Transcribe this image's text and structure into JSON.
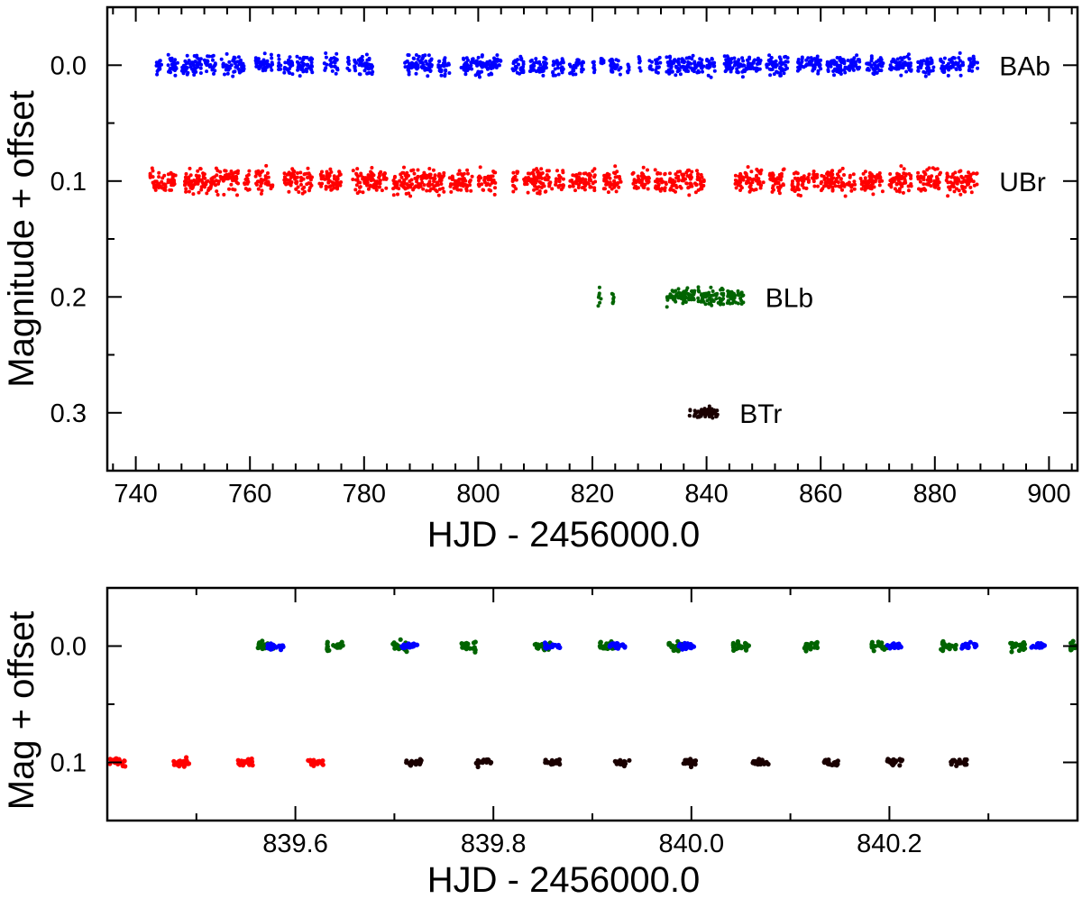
{
  "chart_data": [
    {
      "type": "scatter",
      "xlabel": "HJD - 2456000.0",
      "ylabel": "Magnitude + offset",
      "xlim": [
        735,
        905
      ],
      "ylim": [
        0.35,
        -0.05
      ],
      "x_ticks": [
        740,
        760,
        780,
        800,
        820,
        840,
        860,
        880,
        900
      ],
      "y_ticks": [
        0.0,
        0.1,
        0.2,
        0.3
      ],
      "y_tick_labels": [
        "0.0",
        "0.1",
        "0.2",
        "0.3"
      ],
      "grid": false,
      "legend": "none",
      "series": [
        {
          "name": "BAb",
          "color": "#0000ff",
          "offset": 0.0,
          "scatter": 0.012,
          "segments": [
            [
              743.5,
              744.5
            ],
            [
              745.5,
              747.5
            ],
            [
              748,
              751.5
            ],
            [
              752,
              754
            ],
            [
              755,
              759
            ],
            [
              761,
              764
            ],
            [
              765,
              765.5
            ],
            [
              766,
              767.5
            ],
            [
              768,
              771
            ],
            [
              773,
              773.5
            ],
            [
              774,
              775.5
            ],
            [
              777,
              777.5
            ],
            [
              778,
              781.5
            ],
            [
              787,
              792
            ],
            [
              793,
              795
            ],
            [
              797,
              804
            ],
            [
              806,
              808
            ],
            [
              809,
              812
            ],
            [
              813,
              815
            ],
            [
              816,
              818.5
            ],
            [
              820,
              820.5
            ],
            [
              821.5,
              822
            ],
            [
              823,
              825
            ],
            [
              826,
              826.5
            ],
            [
              828,
              828.5
            ],
            [
              830,
              830.5
            ],
            [
              831,
              832
            ],
            [
              833,
              839.5
            ],
            [
              840,
              841.5
            ],
            [
              843,
              849.5
            ],
            [
              850.5,
              854.5
            ],
            [
              856,
              860
            ],
            [
              861,
              867
            ],
            [
              868,
              871
            ],
            [
              872,
              876
            ],
            [
              877,
              880
            ],
            [
              881,
              885
            ],
            [
              886,
              887.5
            ]
          ]
        },
        {
          "name": "UBr",
          "color": "#ff0000",
          "offset": 0.1,
          "scatter": 0.015,
          "segments": [
            [
              742.5,
              747
            ],
            [
              748.5,
              758
            ],
            [
              759,
              760
            ],
            [
              761,
              764
            ],
            [
              766,
              771
            ],
            [
              772,
              776
            ],
            [
              778,
              784
            ],
            [
              785,
              794
            ],
            [
              795,
              799
            ],
            [
              800,
              803
            ],
            [
              806,
              807
            ],
            [
              808,
              815
            ],
            [
              816,
              820.5
            ],
            [
              822,
              825
            ],
            [
              827,
              830
            ],
            [
              831,
              833
            ],
            [
              833.5,
              837.5
            ],
            [
              838,
              840
            ],
            [
              845,
              850
            ],
            [
              851,
              854
            ],
            [
              855,
              858
            ],
            [
              858.5,
              859.5
            ],
            [
              860,
              866
            ],
            [
              867,
              871
            ],
            [
              872,
              876
            ],
            [
              877,
              881
            ],
            [
              882,
              887.5
            ]
          ]
        },
        {
          "name": "BLb",
          "color": "#006400",
          "offset": 0.2,
          "scatter": 0.01,
          "segments": [
            [
              821,
              821.5
            ],
            [
              823.3,
              823.8
            ],
            [
              833,
              838
            ],
            [
              838.5,
              843
            ],
            [
              843.5,
              846.5
            ]
          ]
        },
        {
          "name": "BTr",
          "color": "#1a0000",
          "offset": 0.3,
          "scatter": 0.006,
          "segments": [
            [
              837,
              842
            ]
          ]
        }
      ]
    },
    {
      "type": "scatter",
      "xlabel": "HJD - 2456000.0",
      "ylabel": "Mag + offset",
      "xlim": [
        839.41,
        840.39
      ],
      "ylim": [
        0.15,
        -0.05
      ],
      "x_ticks": [
        839.6,
        839.8,
        840.0,
        840.2
      ],
      "x_tick_labels": [
        "839.6",
        "839.8",
        "840.0",
        "840.2"
      ],
      "y_ticks": [
        0.0,
        0.1
      ],
      "y_tick_labels": [
        "0.0",
        "0.1"
      ],
      "grid": false,
      "legend": "none",
      "series": [
        {
          "color": "#006400",
          "offset": 0.0,
          "scatter": 0.006,
          "x": [
            839.57,
            839.64,
            839.705,
            839.775,
            839.85,
            839.915,
            839.985,
            840.05,
            840.12,
            840.19,
            840.26,
            840.33,
            840.39
          ]
        },
        {
          "color": "#0000ff",
          "offset": 0.0,
          "scatter": 0.004,
          "x": [
            839.58,
            839.715,
            839.86,
            839.925,
            839.995,
            840.205,
            840.28,
            840.35
          ]
        },
        {
          "color": "#ff0000",
          "offset": 0.1,
          "scatter": 0.006,
          "x": [
            839.42,
            839.485,
            839.55,
            839.62
          ]
        },
        {
          "color": "#1a0000",
          "offset": 0.1,
          "scatter": 0.004,
          "x": [
            839.72,
            839.79,
            839.86,
            839.93,
            840.0,
            840.07,
            840.14,
            840.205,
            840.27
          ]
        }
      ]
    }
  ]
}
